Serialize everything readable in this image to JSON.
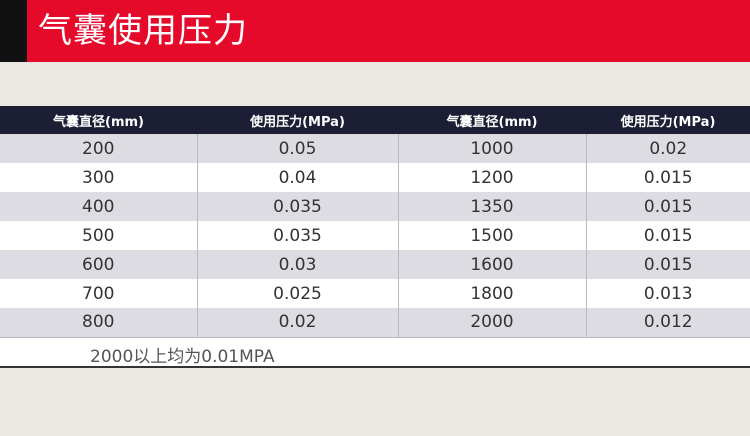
{
  "banner": {
    "title": "气囊使用压力",
    "colors": {
      "red": "#e5092a",
      "black": "#111111"
    }
  },
  "table": {
    "headers": [
      "气囊直径(mm)",
      "使用压力(MPa)",
      "气囊直径(mm)",
      "使用压力(MPa)"
    ],
    "rows": [
      [
        "200",
        "0.05",
        "1000",
        "0.02"
      ],
      [
        "300",
        "0.04",
        "1200",
        "0.015"
      ],
      [
        "400",
        "0.035",
        "1350",
        "0.015"
      ],
      [
        "500",
        "0.035",
        "1500",
        "0.015"
      ],
      [
        "600",
        "0.03",
        "1600",
        "0.015"
      ],
      [
        "700",
        "0.025",
        "1800",
        "0.013"
      ],
      [
        "800",
        "0.02",
        "2000",
        "0.012"
      ]
    ],
    "note": "2000以上均为0.01MPA"
  }
}
